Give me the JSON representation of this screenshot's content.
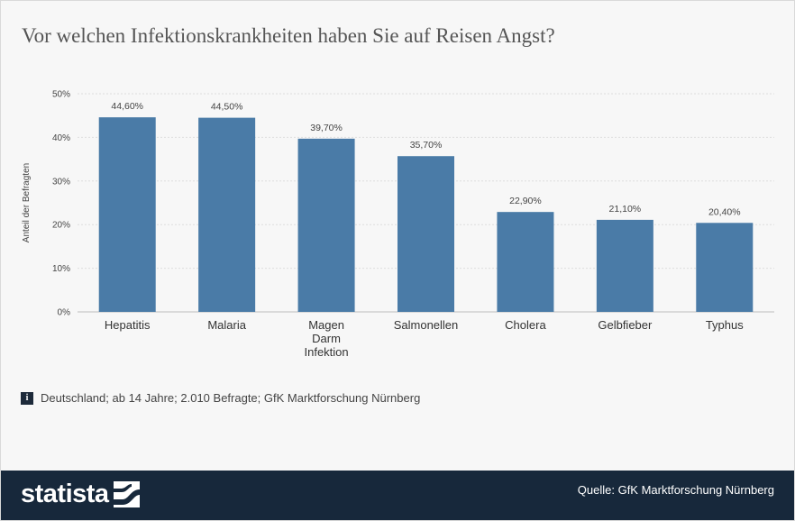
{
  "title": "Vor welchen Infektionskrankheiten haben Sie auf Reisen Angst?",
  "chart_data": {
    "type": "bar",
    "title": "Vor welchen Infektionskrankheiten haben Sie auf Reisen Angst?",
    "categories": [
      [
        "Hepatitis"
      ],
      [
        "Malaria"
      ],
      [
        "Magen",
        "Darm",
        "Infektion"
      ],
      [
        "Salmonellen"
      ],
      [
        "Cholera"
      ],
      [
        "Gelbfieber"
      ],
      [
        "Typhus"
      ]
    ],
    "values": [
      44.6,
      44.5,
      39.7,
      35.7,
      22.9,
      21.1,
      20.4
    ],
    "value_labels": [
      "44,60%",
      "44,50%",
      "39,70%",
      "35,70%",
      "22,90%",
      "21,10%",
      "20,40%"
    ],
    "ylabel": "Anteil der Befragten",
    "xlabel": "",
    "ylim": [
      0,
      50
    ],
    "yticks": [
      0,
      10,
      20,
      30,
      40,
      50
    ],
    "ytick_labels": [
      "0%",
      "10%",
      "20%",
      "30%",
      "40%",
      "50%"
    ],
    "grid": true,
    "bar_color": "#4a7ba7"
  },
  "info_icon": "info-icon",
  "note": "Deutschland; ab 14 Jahre; 2.010 Befragte; GfK Marktforschung Nürnberg",
  "footer": {
    "logo_text": "statista",
    "logo_icon": "statista-logo-mark",
    "source": "Quelle: GfK Marktforschung Nürnberg"
  },
  "colors": {
    "background": "#f7f7f7",
    "footer": "#17283b",
    "bar": "#4a7ba7"
  }
}
